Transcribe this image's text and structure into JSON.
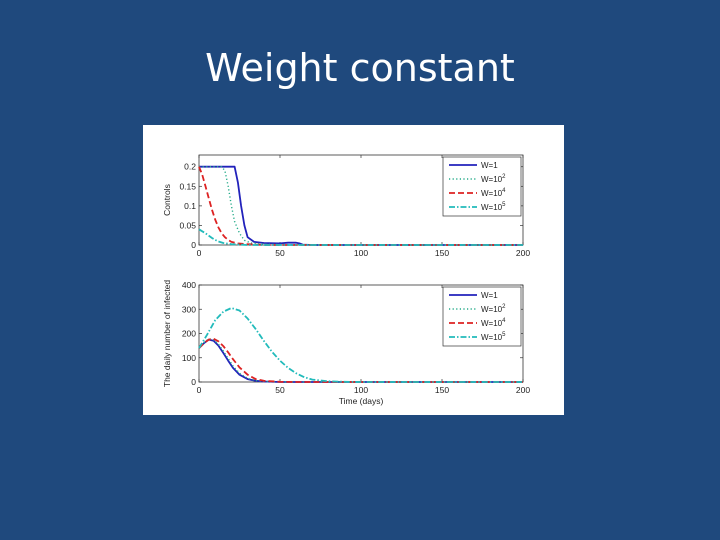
{
  "slide": {
    "title": "Weight constant"
  },
  "chart_data": [
    {
      "type": "line",
      "title": "",
      "xlabel": "",
      "ylabel": "Controls",
      "xlim": [
        0,
        200
      ],
      "ylim": [
        0,
        0.23
      ],
      "xticks": [
        0,
        50,
        100,
        150,
        200
      ],
      "yticks": [
        0,
        0.05,
        0.1,
        0.15,
        0.2
      ],
      "ytick_labels": [
        "0",
        "0.05",
        "0.1",
        "0.15",
        "0.2"
      ],
      "legend_position": "top-right",
      "grid": false,
      "series": [
        {
          "name": "W=1",
          "base": "W=1",
          "exp": "",
          "color": "#2222bb",
          "dash": "",
          "width": 1.8,
          "x": [
            0,
            5,
            10,
            15,
            20,
            22,
            24,
            26,
            28,
            30,
            34,
            40,
            50,
            55,
            60,
            62,
            64,
            70,
            100,
            200
          ],
          "y": [
            0.2,
            0.2,
            0.2,
            0.2,
            0.2,
            0.2,
            0.16,
            0.1,
            0.05,
            0.02,
            0.008,
            0.005,
            0.004,
            0.006,
            0.006,
            0.004,
            0.001,
            0,
            0,
            0
          ]
        },
        {
          "name": "W=10^2",
          "base": "W=10",
          "exp": "2",
          "color": "#22aa88",
          "dash": "1.2,2.4",
          "width": 1.4,
          "x": [
            0,
            5,
            10,
            14,
            16,
            18,
            20,
            22,
            25,
            28,
            32,
            40,
            50,
            100,
            200
          ],
          "y": [
            0.2,
            0.2,
            0.2,
            0.2,
            0.19,
            0.15,
            0.1,
            0.06,
            0.03,
            0.012,
            0.005,
            0.002,
            0.001,
            0,
            0
          ]
        },
        {
          "name": "W=10^4",
          "base": "W=10",
          "exp": "4",
          "color": "#dd2222",
          "dash": "6,3",
          "width": 1.8,
          "x": [
            0,
            2,
            4,
            6,
            8,
            10,
            12,
            14,
            16,
            18,
            20,
            24,
            30,
            40,
            100,
            200
          ],
          "y": [
            0.2,
            0.18,
            0.15,
            0.12,
            0.09,
            0.065,
            0.045,
            0.03,
            0.02,
            0.013,
            0.008,
            0.004,
            0.002,
            0,
            0,
            0
          ]
        },
        {
          "name": "W=10^5",
          "base": "W=10",
          "exp": "5",
          "color": "#22bbbb",
          "dash": "6,2,1.5,2",
          "width": 1.8,
          "x": [
            0,
            2,
            4,
            6,
            8,
            10,
            12,
            15,
            20,
            25,
            30,
            100,
            200
          ],
          "y": [
            0.04,
            0.035,
            0.03,
            0.024,
            0.018,
            0.013,
            0.009,
            0.005,
            0.002,
            0.001,
            0,
            0,
            0
          ]
        }
      ]
    },
    {
      "type": "line",
      "title": "",
      "xlabel": "Time (days)",
      "ylabel": "The daily number of infected",
      "xlim": [
        0,
        200
      ],
      "ylim": [
        0,
        400
      ],
      "xticks": [
        0,
        50,
        100,
        150,
        200
      ],
      "yticks": [
        0,
        100,
        200,
        300,
        400
      ],
      "ytick_labels": [
        "0",
        "100",
        "200",
        "300",
        "400"
      ],
      "legend_position": "top-right",
      "grid": false,
      "series": [
        {
          "name": "W=1",
          "base": "W=1",
          "exp": "",
          "color": "#2222bb",
          "dash": "",
          "width": 1.8,
          "x": [
            0,
            3,
            6,
            9,
            12,
            15,
            18,
            21,
            25,
            30,
            35,
            40,
            50,
            200
          ],
          "y": [
            140,
            160,
            175,
            170,
            150,
            120,
            88,
            58,
            30,
            12,
            5,
            2,
            0,
            0
          ]
        },
        {
          "name": "W=10^2",
          "base": "W=10",
          "exp": "2",
          "color": "#22aa88",
          "dash": "1.2,2.4",
          "width": 1.4,
          "x": [
            0,
            3,
            6,
            9,
            12,
            15,
            18,
            21,
            25,
            30,
            35,
            40,
            50,
            200
          ],
          "y": [
            140,
            162,
            178,
            174,
            156,
            128,
            96,
            66,
            36,
            15,
            6,
            2,
            0,
            0
          ]
        },
        {
          "name": "W=10^4",
          "base": "W=10",
          "exp": "4",
          "color": "#dd2222",
          "dash": "6,3",
          "width": 1.8,
          "x": [
            0,
            3,
            6,
            9,
            12,
            15,
            18,
            21,
            25,
            30,
            35,
            40,
            50,
            60,
            200
          ],
          "y": [
            140,
            160,
            175,
            178,
            168,
            148,
            122,
            94,
            60,
            30,
            12,
            5,
            1,
            0,
            0
          ]
        },
        {
          "name": "W=10^5",
          "base": "W=10",
          "exp": "5",
          "color": "#22bbbb",
          "dash": "6,2,1.5,2",
          "width": 1.8,
          "x": [
            0,
            5,
            10,
            15,
            20,
            25,
            30,
            35,
            40,
            45,
            50,
            55,
            60,
            65,
            70,
            80,
            90,
            100,
            200
          ],
          "y": [
            140,
            195,
            255,
            290,
            305,
            295,
            262,
            218,
            170,
            125,
            88,
            58,
            36,
            20,
            10,
            3,
            1,
            0,
            0
          ]
        }
      ]
    }
  ]
}
